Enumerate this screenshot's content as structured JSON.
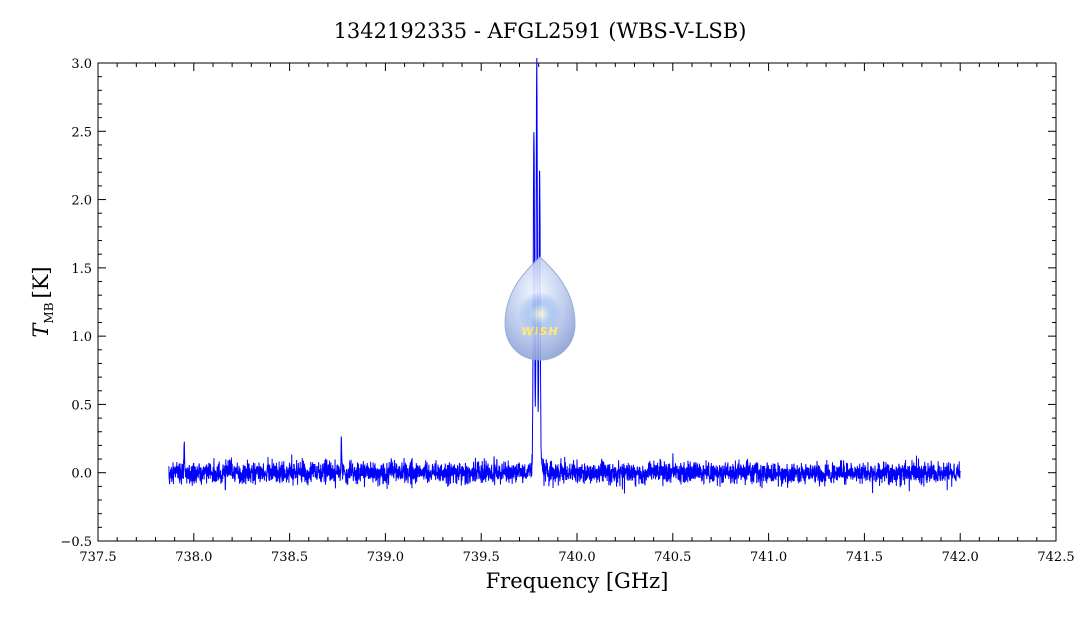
{
  "chart_data": {
    "type": "line",
    "title": "1342192335 - AFGL2591 (WBS-V-LSB)",
    "xlabel": "Frequency [GHz]",
    "ylabel_main": "T",
    "ylabel_sub": "MB",
    "ylabel_unit": "[K]",
    "xlim": [
      737.5,
      742.5
    ],
    "ylim": [
      -0.5,
      3.0
    ],
    "x_ticks": [
      "737.5",
      "738.0",
      "738.5",
      "739.0",
      "739.5",
      "740.0",
      "740.5",
      "741.0",
      "741.5",
      "742.0",
      "742.5"
    ],
    "y_ticks": [
      "−0.5",
      "0.0",
      "0.5",
      "1.0",
      "1.5",
      "2.0",
      "2.5",
      "3.0"
    ],
    "grid": false,
    "series": [
      {
        "color": "#0000ff",
        "x_range": [
          737.87,
          742.0
        ],
        "baseline": 0.0,
        "noise_rms": 0.04,
        "features": [
          {
            "center": 739.79,
            "peak": 2.86
          },
          {
            "center": 739.775,
            "peak": 2.45
          },
          {
            "center": 739.805,
            "peak": 2.1
          },
          {
            "center": 738.77,
            "peak": 0.25
          },
          {
            "center": 737.95,
            "peak": 0.23
          }
        ]
      }
    ]
  },
  "logo": {
    "text": "WISH",
    "color_top": "#eaf1fb",
    "color_bottom": "#8aa3d8"
  }
}
